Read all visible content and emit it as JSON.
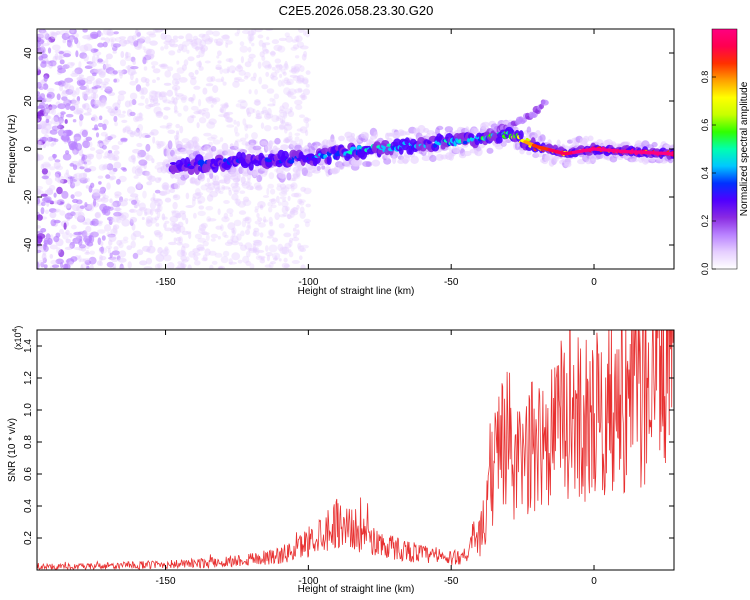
{
  "title": "C2E5.2026.058.23.30.G20",
  "colors": {
    "trace": "#e83030",
    "axis": "#000000",
    "background": "#ffffff",
    "colormap": [
      "#ffffff",
      "#e6cfff",
      "#b982ff",
      "#8a2be2",
      "#5000ff",
      "#0030ff",
      "#00c8ff",
      "#00ffb0",
      "#30ff00",
      "#c8ff00",
      "#ffff00",
      "#ffa000",
      "#ff3000",
      "#ff0050",
      "#ff0080"
    ]
  },
  "chart_data": [
    {
      "type": "heatmap",
      "title": "C2E5.2026.058.23.30.G20",
      "xlabel": "Height of straight line (km)",
      "ylabel": "Frequency (Hz)",
      "xlim": [
        -195,
        28
      ],
      "ylim": [
        -50,
        50
      ],
      "x_ticks": [
        -150,
        -100,
        -50,
        0
      ],
      "y_ticks": [
        -40,
        -20,
        0,
        20,
        40
      ],
      "x_tick_labels": [
        "-150",
        "-100",
        "-50",
        "0"
      ],
      "y_tick_labels": [
        "-40",
        "-20",
        "0",
        "20",
        "40"
      ],
      "colorbar": {
        "label": "Normalized spectral amplitude",
        "range": [
          0,
          1
        ],
        "ticks": [
          0.0,
          0.2,
          0.4,
          0.6,
          0.8
        ],
        "tick_labels": [
          "0.0",
          "0.2",
          "0.4",
          "0.6",
          "0.8"
        ]
      },
      "ridge_center_hz": {
        "height_km": [
          -145,
          -120,
          -100,
          -90,
          -80,
          -70,
          -60,
          -50,
          -40,
          -30,
          -20,
          -10,
          0,
          10,
          28
        ],
        "frequency_hz": [
          -7,
          -5,
          -4,
          -2,
          0,
          1,
          2,
          3,
          4,
          6,
          1,
          -2,
          0,
          -1,
          -2
        ]
      },
      "ridge_peak_amplitude": {
        "height_km": [
          -145,
          -120,
          -100,
          -90,
          -80,
          -70,
          -60,
          -50,
          -40,
          -30,
          -20,
          -10,
          0,
          10,
          28
        ],
        "amplitude": [
          0.3,
          0.35,
          0.35,
          0.45,
          0.45,
          0.45,
          0.4,
          0.45,
          0.5,
          0.6,
          0.85,
          0.95,
          1.0,
          1.0,
          1.0
        ]
      },
      "upper_branch": {
        "height_km": [
          -40,
          -30,
          -25,
          -20,
          -17
        ],
        "frequency_hz": [
          5,
          9,
          12,
          16,
          20
        ]
      },
      "noise_region_km": [
        -195,
        -110
      ]
    },
    {
      "type": "line",
      "xlabel": "Height of straight line (km)",
      "ylabel": "SNR (10 * v/v)",
      "y_multiplier_label": "(x10",
      "y_multiplier_exponent": "4",
      "y_multiplier_close": ")",
      "xlim": [
        -195,
        28
      ],
      "ylim": [
        0,
        1.5
      ],
      "x_ticks": [
        -150,
        -100,
        -50,
        0
      ],
      "y_ticks": [
        0.2,
        0.4,
        0.6,
        0.8,
        1.0,
        1.2,
        1.4
      ],
      "x_tick_labels": [
        "-150",
        "-100",
        "-50",
        "0"
      ],
      "y_tick_labels": [
        "0.2",
        "0.4",
        "0.6",
        "0.8",
        "1.0",
        "1.2",
        "1.4"
      ],
      "series": [
        {
          "name": "SNR",
          "color": "#e83030",
          "x": [
            -195,
            -180,
            -160,
            -140,
            -130,
            -120,
            -110,
            -105,
            -100,
            -95,
            -90,
            -85,
            -80,
            -75,
            -70,
            -65,
            -60,
            -55,
            -50,
            -45,
            -40,
            -37,
            -35,
            -33,
            -30,
            -28,
            -25,
            -20,
            -15,
            -10,
            -5,
            0,
            5,
            10,
            15,
            20,
            28
          ],
          "y": [
            0.02,
            0.02,
            0.03,
            0.04,
            0.05,
            0.07,
            0.09,
            0.12,
            0.18,
            0.24,
            0.3,
            0.26,
            0.22,
            0.16,
            0.14,
            0.12,
            0.1,
            0.08,
            0.07,
            0.1,
            0.2,
            0.4,
            0.65,
            0.8,
            0.85,
            0.6,
            0.7,
            0.8,
            0.85,
            0.95,
            0.95,
            0.95,
            1.0,
            1.05,
            1.1,
            1.2,
            1.4
          ]
        }
      ]
    }
  ]
}
